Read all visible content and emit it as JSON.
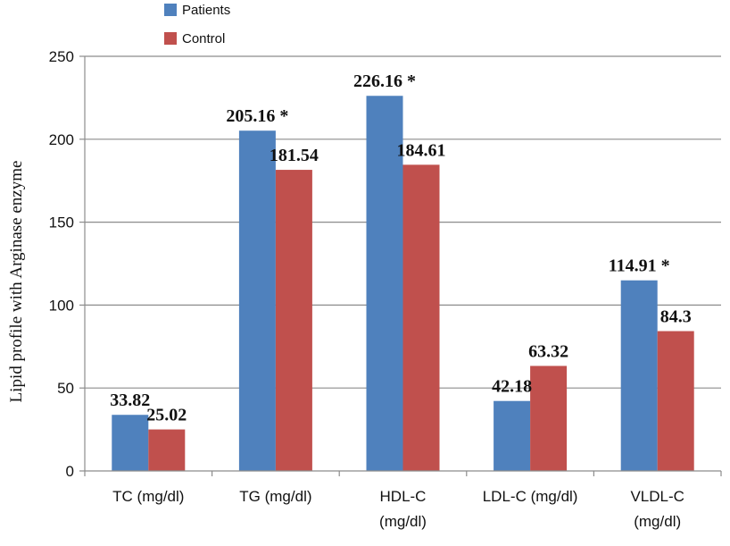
{
  "chart_data": {
    "type": "bar",
    "categories": [
      [
        "TC (mg/dl)"
      ],
      [
        "TG (mg/dl)"
      ],
      [
        "HDL-C",
        "(mg/dl)"
      ],
      [
        "LDL-C (mg/dl)"
      ],
      [
        "VLDL-C",
        "(mg/dl)"
      ]
    ],
    "series": [
      {
        "name": "Patients",
        "color": "#4F81BD",
        "values": [
          33.82,
          205.16,
          226.16,
          42.18,
          114.91
        ],
        "labels": [
          "33.82",
          "205.16 *",
          "226.16 *",
          "42.18",
          "114.91 *"
        ]
      },
      {
        "name": "Control",
        "color": "#C0504D",
        "values": [
          25.02,
          181.54,
          184.61,
          63.32,
          84.3
        ],
        "labels": [
          "25.02",
          "181.54",
          "184.61",
          "63.32",
          "84.3"
        ]
      }
    ],
    "ylabel": "Lipid profile with Arginase enzyme",
    "xlabel": "",
    "ylim": [
      0,
      250
    ],
    "yticks": [
      0,
      50,
      100,
      150,
      200,
      250
    ],
    "grid": true,
    "legend_position": "top-left"
  }
}
